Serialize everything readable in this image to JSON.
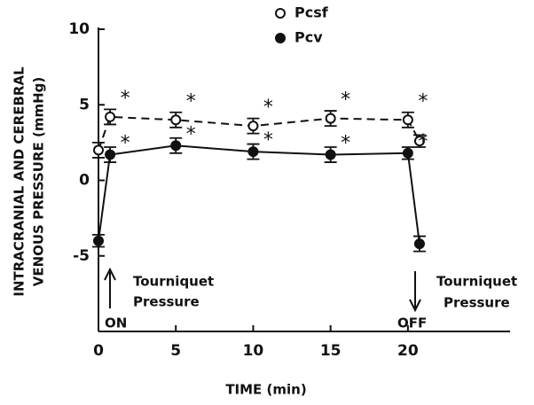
{
  "chart_data": {
    "type": "line",
    "ylabel": [
      "INTRACRANIAL AND CEREBRAL",
      "VENOUS PRESSURE (mmHg)"
    ],
    "xlabel": "TIME (min)",
    "xlim": [
      0,
      26.6
    ],
    "xticks": [
      0,
      5,
      10,
      15,
      20
    ],
    "ylim": [
      -10,
      10
    ],
    "yticks": [
      -5,
      0,
      5,
      10
    ],
    "significance_symbol": "*",
    "series": [
      {
        "name": "Pcsf",
        "color": "#111111",
        "marker": "open",
        "dashed": true,
        "x": [
          0,
          0.75,
          5,
          10,
          15,
          20,
          20.75
        ],
        "values": [
          2.0,
          4.2,
          4.0,
          3.6,
          4.1,
          4.0,
          2.6
        ],
        "errors": [
          0.5,
          0.5,
          0.5,
          0.5,
          0.5,
          0.5,
          0.4
        ],
        "significant": [
          1,
          2,
          3,
          4,
          5
        ]
      },
      {
        "name": "Pcv",
        "color": "#111111",
        "marker": "filled",
        "dashed": false,
        "x": [
          0,
          0.75,
          5,
          10,
          15,
          20,
          20.75
        ],
        "values": [
          -4.0,
          1.7,
          2.3,
          1.9,
          1.7,
          1.8,
          -4.2
        ],
        "errors": [
          0.4,
          0.5,
          0.5,
          0.5,
          0.5,
          0.4,
          0.5
        ],
        "significant": [
          1,
          2,
          3,
          4,
          5
        ]
      }
    ],
    "annotations": [
      {
        "text": [
          "Tourniquet",
          "Pressure"
        ],
        "label": "ON"
      },
      {
        "text": [
          "Tourniquet",
          "Pressure"
        ],
        "label": "OFF"
      }
    ]
  }
}
